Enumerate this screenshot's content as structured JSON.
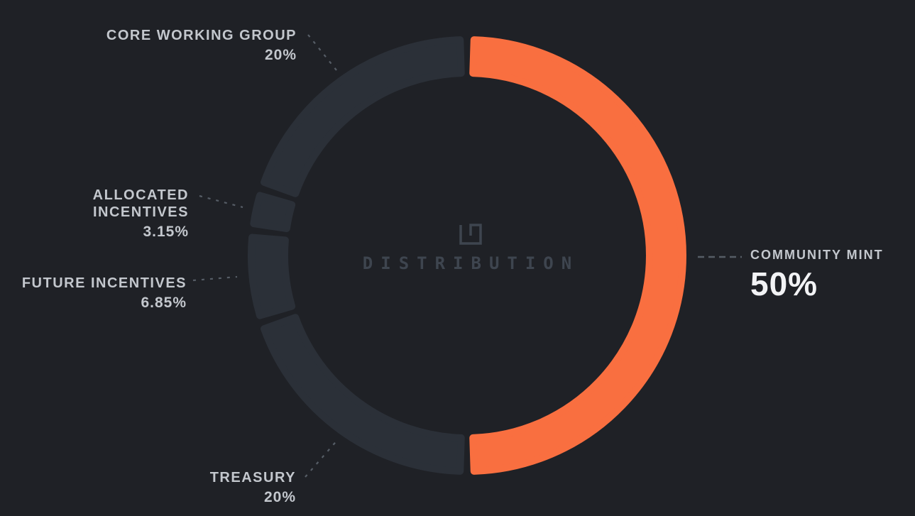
{
  "chart_data": {
    "type": "donut",
    "center_label": "DISTRIBUTION",
    "direction": "clockwise",
    "start_angle_deg": 0,
    "legend_position": "callouts-around-ring",
    "grid": false,
    "total": 100,
    "segments": [
      {
        "name": "COMMUNITY MINT",
        "value": 50,
        "display": "50%",
        "color": "#F96F40",
        "emphasized": true
      },
      {
        "name": "TREASURY",
        "value": 20,
        "display": "20%",
        "color": "#2B3038",
        "emphasized": false
      },
      {
        "name": "FUTURE INCENTIVES",
        "value": 6.85,
        "display": "6.85%",
        "color": "#2B3038",
        "emphasized": false
      },
      {
        "name": "ALLOCATED INCENTIVES",
        "value": 3.15,
        "display": "3.15%",
        "color": "#2B3038",
        "emphasized": false
      },
      {
        "name": "CORE WORKING GROUP",
        "value": 20,
        "display": "20%",
        "color": "#2B3038",
        "emphasized": false
      }
    ],
    "colors": {
      "background": "#1F2126",
      "accent_orange": "#F96F40",
      "muted_segment": "#2B3038",
      "label_text": "#C3C7CD",
      "highlight_value_text": "#F2F3F5",
      "center_text": "#3E454F",
      "leader_line": "#565D66"
    },
    "center_logo_icon": "maze-square-logo"
  }
}
